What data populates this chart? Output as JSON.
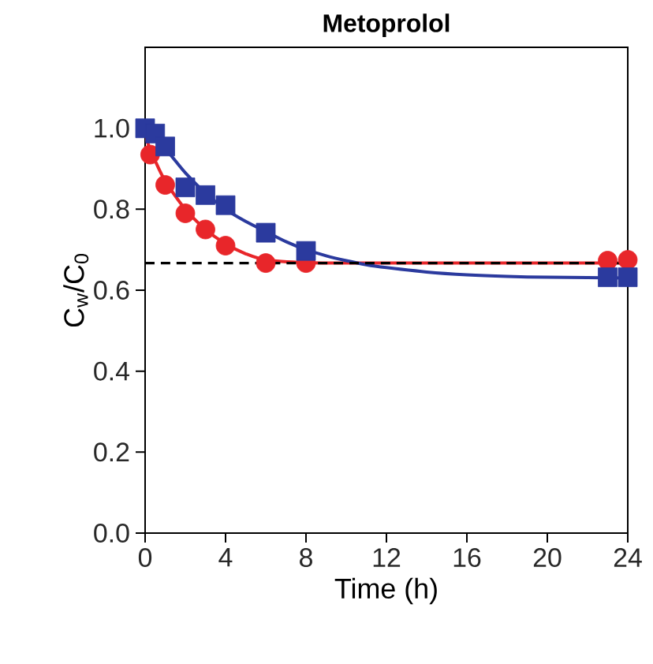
{
  "chart_data": {
    "type": "scatter",
    "title": "Metoprolol",
    "xlabel": "Time (h)",
    "ylabel": "C$_{w}$/C$_{0}$",
    "xlim": [
      0,
      24
    ],
    "xticks": [
      0,
      4,
      8,
      12,
      16,
      20,
      24
    ],
    "ylim": [
      0,
      1.2
    ],
    "yticks": [
      {
        "value": 0,
        "label": "0.0"
      },
      0.2,
      0.4,
      0.6,
      0.8,
      {
        "value": 1,
        "label": "1.0"
      }
    ],
    "series": [
      {
        "type": "line",
        "color": "#e8262a",
        "marker": "none",
        "x": [
          0,
          0.5,
          1,
          2,
          3,
          4,
          5,
          6,
          8,
          10,
          12,
          16,
          20,
          24
        ],
        "values": [
          0.98,
          0.92,
          0.87,
          0.8,
          0.75,
          0.715,
          0.69,
          0.675,
          0.668,
          0.667,
          0.667,
          0.667,
          0.667,
          0.667
        ]
      },
      {
        "type": "line",
        "color": "#2b3a9e",
        "marker": "none",
        "x": [
          0,
          1,
          2,
          3,
          4,
          5,
          6,
          7,
          8,
          9,
          10,
          11,
          12,
          14,
          16,
          18,
          20,
          22,
          24
        ],
        "values": [
          1.0,
          0.95,
          0.89,
          0.84,
          0.8,
          0.77,
          0.745,
          0.72,
          0.7,
          0.685,
          0.673,
          0.663,
          0.656,
          0.645,
          0.638,
          0.634,
          0.632,
          0.631,
          0.63
        ]
      },
      {
        "color": "#e8262a",
        "marker": "circle",
        "x": [
          0.25,
          1,
          2,
          3,
          4,
          6,
          8,
          23,
          24
        ],
        "values": [
          0.935,
          0.86,
          0.79,
          0.75,
          0.71,
          0.667,
          0.667,
          0.673,
          0.675
        ]
      },
      {
        "color": "#2b3a9e",
        "marker": "square",
        "x": [
          0,
          0.5,
          1,
          2,
          3,
          4,
          6,
          8,
          23,
          24
        ],
        "values": [
          1.0,
          0.987,
          0.955,
          0.854,
          0.835,
          0.81,
          0.742,
          0.697,
          0.632,
          0.632
        ]
      }
    ],
    "ref_lines": [
      {
        "axis": "y",
        "value": 0.667,
        "color": "#000000",
        "line_style": "dashed"
      }
    ]
  }
}
